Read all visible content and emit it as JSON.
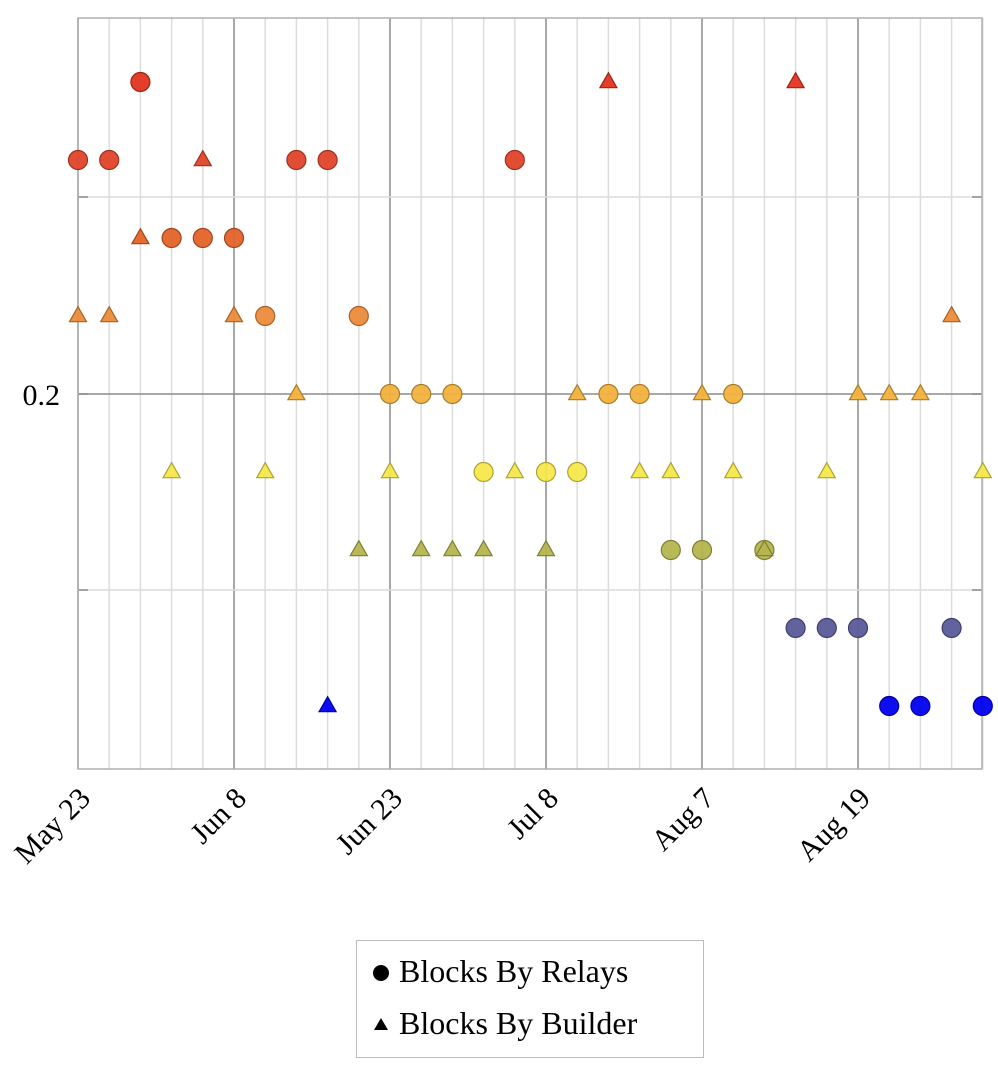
{
  "chart_data": {
    "type": "scatter",
    "title": "",
    "xlabel": "",
    "ylabel": "",
    "x_tick_labels": [
      "May 23",
      "Jun 8",
      "Jun 23",
      "Jul 8",
      "Aug 7",
      "Aug 19"
    ],
    "x_tick_columns": [
      0,
      5,
      10,
      15,
      20,
      25
    ],
    "column_count": 30,
    "y_tick_label": "0.2",
    "y_levels": 10,
    "y_labeled_level": 5,
    "legend": [
      {
        "name": "Blocks By Relays",
        "marker": "circle"
      },
      {
        "name": "Blocks By Builder",
        "marker": "triangle"
      }
    ],
    "level_colors": {
      "0": "#0000ee",
      "1": "#5a5a9a",
      "2": "#b5b54e",
      "3": "#f5e84a",
      "4": "#f2b23c",
      "5": "#ec8c3a",
      "6": "#e4632a",
      "7": "#e0452a",
      "8": "#e0341f"
    },
    "series": [
      {
        "name": "Blocks By Relays",
        "marker": "circle",
        "points": [
          {
            "col": 0,
            "level": 7
          },
          {
            "col": 1,
            "level": 7
          },
          {
            "col": 2,
            "level": 8
          },
          {
            "col": 3,
            "level": 6
          },
          {
            "col": 4,
            "level": 6
          },
          {
            "col": 5,
            "level": 6
          },
          {
            "col": 6,
            "level": 5
          },
          {
            "col": 7,
            "level": 7
          },
          {
            "col": 8,
            "level": 7
          },
          {
            "col": 9,
            "level": 5
          },
          {
            "col": 10,
            "level": 4
          },
          {
            "col": 11,
            "level": 4
          },
          {
            "col": 12,
            "level": 4
          },
          {
            "col": 13,
            "level": 3
          },
          {
            "col": 14,
            "level": 7
          },
          {
            "col": 15,
            "level": 3
          },
          {
            "col": 16,
            "level": 3
          },
          {
            "col": 17,
            "level": 4
          },
          {
            "col": 18,
            "level": 4
          },
          {
            "col": 19,
            "level": 2
          },
          {
            "col": 20,
            "level": 2
          },
          {
            "col": 21,
            "level": 4
          },
          {
            "col": 22,
            "level": 2
          },
          {
            "col": 23,
            "level": 1
          },
          {
            "col": 24,
            "level": 1
          },
          {
            "col": 25,
            "level": 1
          },
          {
            "col": 26,
            "level": 0
          },
          {
            "col": 27,
            "level": 0
          },
          {
            "col": 28,
            "level": 1
          },
          {
            "col": 29,
            "level": 0
          }
        ]
      },
      {
        "name": "Blocks By Builder",
        "marker": "triangle",
        "points": [
          {
            "col": 0,
            "level": 5
          },
          {
            "col": 1,
            "level": 5
          },
          {
            "col": 2,
            "level": 6
          },
          {
            "col": 3,
            "level": 3
          },
          {
            "col": 4,
            "level": 7
          },
          {
            "col": 5,
            "level": 5
          },
          {
            "col": 6,
            "level": 3
          },
          {
            "col": 7,
            "level": 4
          },
          {
            "col": 8,
            "level": 0
          },
          {
            "col": 9,
            "level": 2
          },
          {
            "col": 10,
            "level": 3
          },
          {
            "col": 11,
            "level": 2
          },
          {
            "col": 12,
            "level": 2
          },
          {
            "col": 13,
            "level": 2
          },
          {
            "col": 14,
            "level": 3
          },
          {
            "col": 15,
            "level": 2
          },
          {
            "col": 16,
            "level": 4
          },
          {
            "col": 17,
            "level": 8
          },
          {
            "col": 18,
            "level": 3
          },
          {
            "col": 19,
            "level": 3
          },
          {
            "col": 20,
            "level": 4
          },
          {
            "col": 21,
            "level": 3
          },
          {
            "col": 22,
            "level": 2
          },
          {
            "col": 23,
            "level": 8
          },
          {
            "col": 24,
            "level": 3
          },
          {
            "col": 25,
            "level": 4
          },
          {
            "col": 26,
            "level": 4
          },
          {
            "col": 27,
            "level": 4
          },
          {
            "col": 28,
            "level": 5
          },
          {
            "col": 29,
            "level": 3
          }
        ]
      }
    ]
  }
}
